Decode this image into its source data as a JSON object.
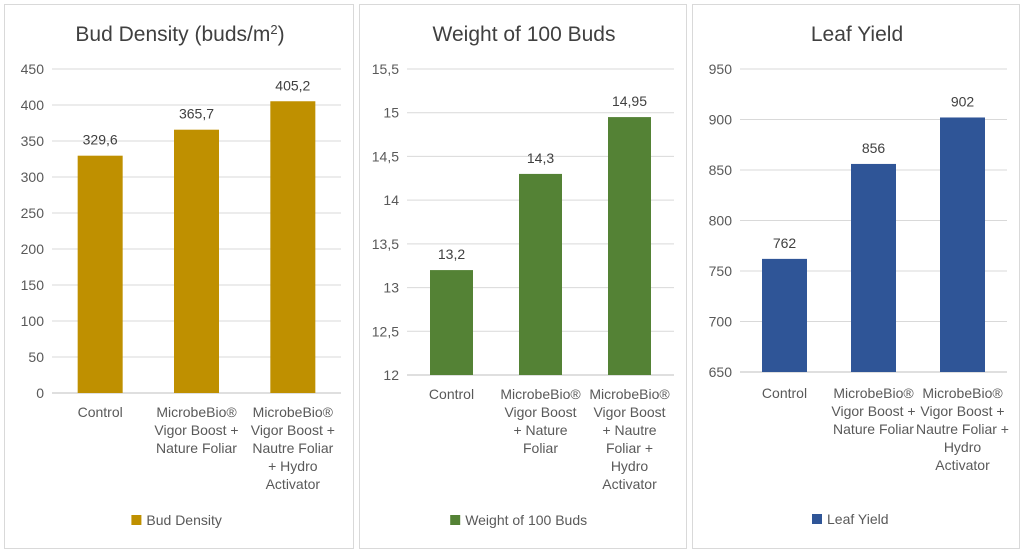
{
  "chart_data": [
    {
      "type": "bar",
      "title": "Bud Density (buds/m",
      "title_superscript": "2",
      "title_suffix": ")",
      "categories": [
        [
          "Control"
        ],
        [
          "MicrobeBio®",
          "Vigor Boost +",
          "Nature Foliar"
        ],
        [
          "MicrobeBio®",
          "Vigor Boost +",
          "Nautre Foliar",
          "+ Hydro",
          "Activator"
        ]
      ],
      "series": [
        {
          "name": "Bud Density",
          "color": "#bf9000",
          "values": [
            329.6,
            365.7,
            405.2
          ],
          "value_labels": [
            "329,6",
            "365,7",
            "405,2"
          ]
        }
      ],
      "ylim": [
        0,
        450
      ],
      "yticks": [
        "0",
        "50",
        "100",
        "150",
        "200",
        "250",
        "300",
        "350",
        "400",
        "450"
      ],
      "grid": true,
      "legend": "bottom"
    },
    {
      "type": "bar",
      "title": "Weight of 100 Buds",
      "categories": [
        [
          "Control"
        ],
        [
          "MicrobeBio®",
          "Vigor Boost",
          "+ Nature",
          "Foliar"
        ],
        [
          "MicrobeBio®",
          "Vigor Boost",
          "+ Nautre",
          "Foliar +",
          "Hydro",
          "Activator"
        ]
      ],
      "series": [
        {
          "name": "Weight of 100 Buds",
          "color": "#548235",
          "values": [
            13.2,
            14.3,
            14.95
          ],
          "value_labels": [
            "13,2",
            "14,3",
            "14,95"
          ]
        }
      ],
      "ylim": [
        12,
        15.5
      ],
      "yticks": [
        "12",
        "12,5",
        "13",
        "13,5",
        "14",
        "14,5",
        "15",
        "15,5"
      ],
      "grid": true,
      "legend": "bottom"
    },
    {
      "type": "bar",
      "title": "Leaf Yield",
      "categories": [
        [
          "Control"
        ],
        [
          "MicrobeBio®",
          "Vigor Boost +",
          "Nature Foliar"
        ],
        [
          "MicrobeBio®",
          "Vigor Boost +",
          "Nautre Foliar +",
          "Hydro",
          "Activator"
        ]
      ],
      "series": [
        {
          "name": "Leaf Yield",
          "color": "#2f5597",
          "values": [
            762,
            856,
            902
          ],
          "value_labels": [
            "762",
            "856",
            "902"
          ]
        }
      ],
      "ylim": [
        650,
        950
      ],
      "yticks": [
        "650",
        "700",
        "750",
        "800",
        "850",
        "900",
        "950"
      ],
      "grid": true,
      "legend": "bottom"
    }
  ]
}
